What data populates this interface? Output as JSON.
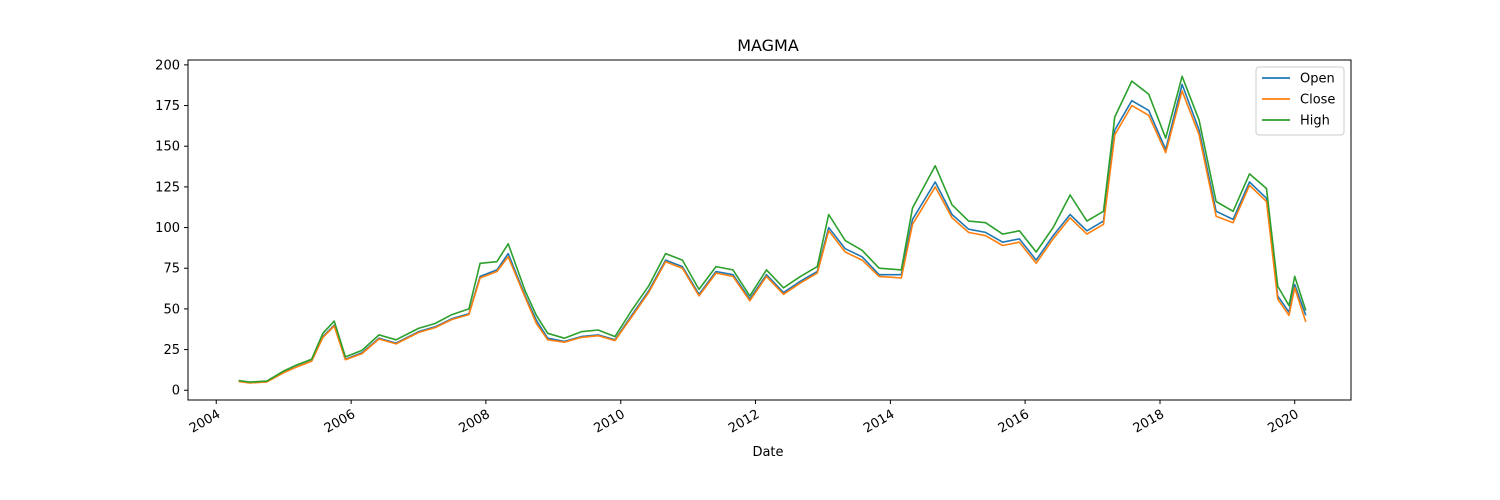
{
  "chart_data": {
    "type": "line",
    "title": "MAGMA",
    "xlabel": "Date",
    "ylabel": "",
    "x_type": "date",
    "xlim": [
      "2003-08-01",
      "2020-11-01"
    ],
    "ylim": [
      -6,
      203
    ],
    "x_ticks": [
      "2004",
      "2006",
      "2008",
      "2010",
      "2012",
      "2014",
      "2016",
      "2018",
      "2020"
    ],
    "y_ticks": [
      0,
      25,
      50,
      75,
      100,
      125,
      150,
      175,
      200
    ],
    "grid": false,
    "legend_position": "top-right",
    "series": [
      {
        "name": "Open",
        "color": "#1f77b4",
        "points": [
          [
            "2004-05",
            5.5
          ],
          [
            "2004-07",
            4.6
          ],
          [
            "2004-10",
            5.2
          ],
          [
            "2005-01",
            11.0
          ],
          [
            "2005-03",
            14.0
          ],
          [
            "2005-06",
            18.0
          ],
          [
            "2005-08",
            33.0
          ],
          [
            "2005-10",
            40.0
          ],
          [
            "2005-12",
            19.0
          ],
          [
            "2006-03",
            23.0
          ],
          [
            "2006-06",
            32.0
          ],
          [
            "2006-09",
            29.0
          ],
          [
            "2007-01",
            36.0
          ],
          [
            "2007-04",
            39.0
          ],
          [
            "2007-07",
            44.0
          ],
          [
            "2007-10",
            47.0
          ],
          [
            "2007-12",
            70.0
          ],
          [
            "2008-03",
            74.0
          ],
          [
            "2008-05",
            84.0
          ],
          [
            "2008-08",
            58.0
          ],
          [
            "2008-10",
            43.0
          ],
          [
            "2008-12",
            32.0
          ],
          [
            "2009-03",
            30.0
          ],
          [
            "2009-06",
            33.0
          ],
          [
            "2009-09",
            34.0
          ],
          [
            "2009-12",
            31.0
          ],
          [
            "2010-03",
            46.0
          ],
          [
            "2010-06",
            61.0
          ],
          [
            "2010-09",
            80.0
          ],
          [
            "2010-12",
            76.0
          ],
          [
            "2011-03",
            59.0
          ],
          [
            "2011-06",
            73.0
          ],
          [
            "2011-09",
            71.0
          ],
          [
            "2011-12",
            56.0
          ],
          [
            "2012-03",
            71.0
          ],
          [
            "2012-06",
            60.0
          ],
          [
            "2012-09",
            67.0
          ],
          [
            "2012-12",
            73.0
          ],
          [
            "2013-02",
            100.0
          ],
          [
            "2013-05",
            87.0
          ],
          [
            "2013-08",
            82.0
          ],
          [
            "2013-11",
            71.0
          ],
          [
            "2014-03",
            71.0
          ],
          [
            "2014-05",
            105.0
          ],
          [
            "2014-09",
            128.0
          ],
          [
            "2014-12",
            108.0
          ],
          [
            "2015-03",
            99.0
          ],
          [
            "2015-06",
            97.0
          ],
          [
            "2015-09",
            91.0
          ],
          [
            "2015-12",
            93.0
          ],
          [
            "2016-03",
            80.0
          ],
          [
            "2016-06",
            95.0
          ],
          [
            "2016-09",
            108.0
          ],
          [
            "2016-12",
            98.0
          ],
          [
            "2017-03",
            104.0
          ],
          [
            "2017-05",
            160.0
          ],
          [
            "2017-08",
            178.0
          ],
          [
            "2017-11",
            172.0
          ],
          [
            "2018-02",
            148.0
          ],
          [
            "2018-05",
            188.0
          ],
          [
            "2018-08",
            160.0
          ],
          [
            "2018-11",
            110.0
          ],
          [
            "2019-02",
            105.0
          ],
          [
            "2019-05",
            128.0
          ],
          [
            "2019-08",
            118.0
          ],
          [
            "2019-10",
            58.0
          ],
          [
            "2019-12",
            48.0
          ],
          [
            "2020-01",
            65.0
          ],
          [
            "2020-03",
            46.0
          ]
        ]
      },
      {
        "name": "Close",
        "color": "#ff7f0e",
        "points": [
          [
            "2004-05",
            5.4
          ],
          [
            "2004-07",
            4.5
          ],
          [
            "2004-10",
            5.1
          ],
          [
            "2005-01",
            10.8
          ],
          [
            "2005-03",
            13.8
          ],
          [
            "2005-06",
            17.8
          ],
          [
            "2005-08",
            32.5
          ],
          [
            "2005-10",
            39.5
          ],
          [
            "2005-12",
            18.8
          ],
          [
            "2006-03",
            22.5
          ],
          [
            "2006-06",
            31.5
          ],
          [
            "2006-09",
            28.5
          ],
          [
            "2007-01",
            35.5
          ],
          [
            "2007-04",
            38.5
          ],
          [
            "2007-07",
            43.5
          ],
          [
            "2007-10",
            46.5
          ],
          [
            "2007-12",
            69.0
          ],
          [
            "2008-03",
            73.0
          ],
          [
            "2008-05",
            82.0
          ],
          [
            "2008-08",
            57.0
          ],
          [
            "2008-10",
            41.0
          ],
          [
            "2008-12",
            31.0
          ],
          [
            "2009-03",
            29.5
          ],
          [
            "2009-06",
            32.5
          ],
          [
            "2009-09",
            33.5
          ],
          [
            "2009-12",
            30.5
          ],
          [
            "2010-03",
            45.0
          ],
          [
            "2010-06",
            60.0
          ],
          [
            "2010-09",
            79.0
          ],
          [
            "2010-12",
            75.0
          ],
          [
            "2011-03",
            58.0
          ],
          [
            "2011-06",
            72.0
          ],
          [
            "2011-09",
            70.0
          ],
          [
            "2011-12",
            55.0
          ],
          [
            "2012-03",
            70.0
          ],
          [
            "2012-06",
            59.0
          ],
          [
            "2012-09",
            66.0
          ],
          [
            "2012-12",
            72.0
          ],
          [
            "2013-02",
            98.0
          ],
          [
            "2013-05",
            85.0
          ],
          [
            "2013-08",
            80.0
          ],
          [
            "2013-11",
            70.0
          ],
          [
            "2014-03",
            69.0
          ],
          [
            "2014-05",
            102.0
          ],
          [
            "2014-09",
            125.0
          ],
          [
            "2014-12",
            106.0
          ],
          [
            "2015-03",
            97.0
          ],
          [
            "2015-06",
            95.0
          ],
          [
            "2015-09",
            89.0
          ],
          [
            "2015-12",
            91.0
          ],
          [
            "2016-03",
            78.0
          ],
          [
            "2016-06",
            93.0
          ],
          [
            "2016-09",
            106.0
          ],
          [
            "2016-12",
            96.0
          ],
          [
            "2017-03",
            102.0
          ],
          [
            "2017-05",
            157.0
          ],
          [
            "2017-08",
            175.0
          ],
          [
            "2017-11",
            169.0
          ],
          [
            "2018-02",
            146.0
          ],
          [
            "2018-05",
            184.0
          ],
          [
            "2018-08",
            157.0
          ],
          [
            "2018-11",
            107.0
          ],
          [
            "2019-02",
            103.0
          ],
          [
            "2019-05",
            126.0
          ],
          [
            "2019-08",
            116.0
          ],
          [
            "2019-10",
            56.0
          ],
          [
            "2019-12",
            46.0
          ],
          [
            "2020-01",
            63.0
          ],
          [
            "2020-03",
            42.0
          ]
        ]
      },
      {
        "name": "High",
        "color": "#2ca02c",
        "points": [
          [
            "2004-05",
            6.0
          ],
          [
            "2004-07",
            5.0
          ],
          [
            "2004-10",
            5.6
          ],
          [
            "2005-01",
            11.8
          ],
          [
            "2005-03",
            15.0
          ],
          [
            "2005-06",
            19.0
          ],
          [
            "2005-08",
            35.0
          ],
          [
            "2005-10",
            42.5
          ],
          [
            "2005-12",
            20.5
          ],
          [
            "2006-03",
            24.5
          ],
          [
            "2006-06",
            34.0
          ],
          [
            "2006-09",
            31.0
          ],
          [
            "2007-01",
            38.0
          ],
          [
            "2007-04",
            41.0
          ],
          [
            "2007-07",
            46.5
          ],
          [
            "2007-10",
            50.0
          ],
          [
            "2007-12",
            78.0
          ],
          [
            "2008-03",
            79.0
          ],
          [
            "2008-05",
            90.0
          ],
          [
            "2008-08",
            61.0
          ],
          [
            "2008-10",
            46.0
          ],
          [
            "2008-12",
            35.0
          ],
          [
            "2009-03",
            32.0
          ],
          [
            "2009-06",
            36.0
          ],
          [
            "2009-09",
            37.0
          ],
          [
            "2009-12",
            33.0
          ],
          [
            "2010-03",
            49.0
          ],
          [
            "2010-06",
            64.0
          ],
          [
            "2010-09",
            84.0
          ],
          [
            "2010-12",
            80.0
          ],
          [
            "2011-03",
            62.0
          ],
          [
            "2011-06",
            76.0
          ],
          [
            "2011-09",
            74.0
          ],
          [
            "2011-12",
            58.0
          ],
          [
            "2012-03",
            74.0
          ],
          [
            "2012-06",
            63.0
          ],
          [
            "2012-09",
            70.0
          ],
          [
            "2012-12",
            76.0
          ],
          [
            "2013-02",
            108.0
          ],
          [
            "2013-05",
            92.0
          ],
          [
            "2013-08",
            86.0
          ],
          [
            "2013-11",
            75.0
          ],
          [
            "2014-03",
            74.0
          ],
          [
            "2014-05",
            112.0
          ],
          [
            "2014-09",
            138.0
          ],
          [
            "2014-12",
            114.0
          ],
          [
            "2015-03",
            104.0
          ],
          [
            "2015-06",
            103.0
          ],
          [
            "2015-09",
            96.0
          ],
          [
            "2015-12",
            98.0
          ],
          [
            "2016-03",
            85.0
          ],
          [
            "2016-06",
            100.0
          ],
          [
            "2016-09",
            120.0
          ],
          [
            "2016-12",
            104.0
          ],
          [
            "2017-03",
            110.0
          ],
          [
            "2017-05",
            168.0
          ],
          [
            "2017-08",
            190.0
          ],
          [
            "2017-11",
            182.0
          ],
          [
            "2018-02",
            155.0
          ],
          [
            "2018-05",
            193.0
          ],
          [
            "2018-08",
            166.0
          ],
          [
            "2018-11",
            116.0
          ],
          [
            "2019-02",
            110.0
          ],
          [
            "2019-05",
            133.0
          ],
          [
            "2019-08",
            124.0
          ],
          [
            "2019-10",
            64.0
          ],
          [
            "2019-12",
            52.0
          ],
          [
            "2020-01",
            70.0
          ],
          [
            "2020-03",
            49.0
          ]
        ]
      }
    ]
  }
}
